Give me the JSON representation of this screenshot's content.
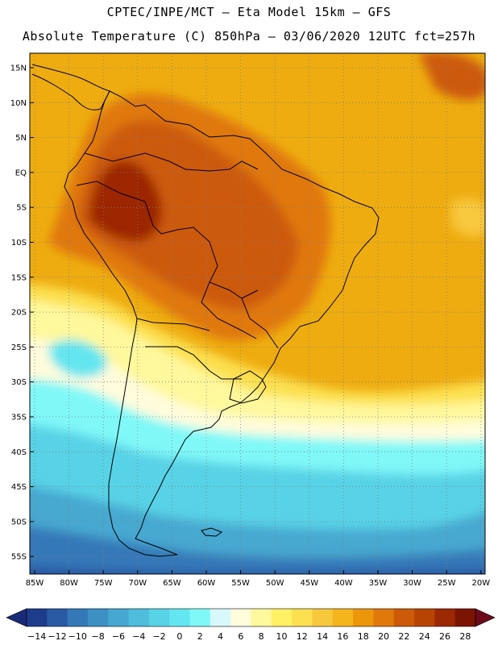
{
  "header": {
    "line1": "CPTEC/INPE/MCT –  Eta Model 15km – GFS",
    "line2": "Absolute Temperature (C) 850hPa – 03/06/2020 12UTC fct=257h"
  },
  "axes": {
    "lat_labels": [
      "15N",
      "10N",
      "5N",
      "EQ",
      "5S",
      "10S",
      "15S",
      "20S",
      "25S",
      "30S",
      "35S",
      "40S",
      "45S",
      "50S",
      "55S"
    ],
    "lon_labels": [
      "85W",
      "80W",
      "75W",
      "70W",
      "65W",
      "60W",
      "55W",
      "50W",
      "45W",
      "40W",
      "35W",
      "30W",
      "25W",
      "20W"
    ]
  },
  "colorbar": {
    "labels": [
      "-14",
      "-12",
      "-10",
      "-8",
      "-6",
      "-4",
      "-2",
      "0",
      "2",
      "4",
      "6",
      "8",
      "10",
      "12",
      "14",
      "16",
      "18",
      "20",
      "22",
      "24",
      "26",
      "28"
    ],
    "colors": [
      "#1e3c8c",
      "#2a5aa4",
      "#3478b8",
      "#3c90c4",
      "#46a8d0",
      "#4ebedc",
      "#58d2e6",
      "#64e6f0",
      "#80f8f8",
      "#d8f8fc",
      "#fffcdc",
      "#fff89c",
      "#fff064",
      "#fce050",
      "#f8c83c",
      "#f4b41c",
      "#ec960c",
      "#e0780c",
      "#cc5a08",
      "#b84404",
      "#9c2804",
      "#7c1404"
    ],
    "under_color": "#1a2a78",
    "over_color": "#6c0a1a"
  },
  "map": {
    "background_color": "#eeac10",
    "land_outline_color": "#000000"
  }
}
